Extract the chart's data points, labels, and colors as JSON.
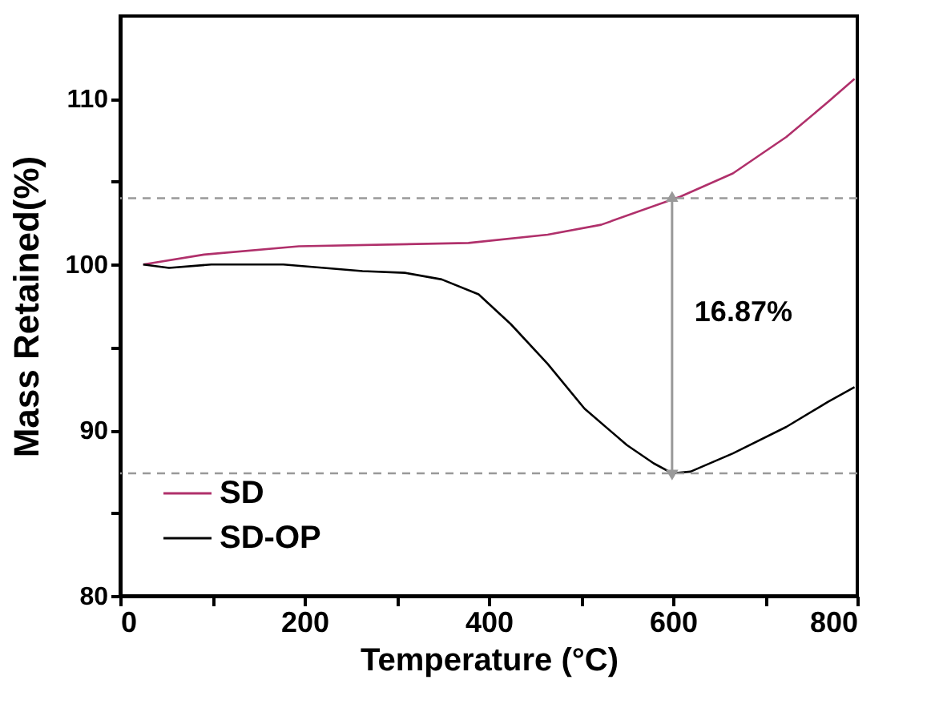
{
  "chart_data": {
    "type": "line",
    "xlabel": "Temperature (°C)",
    "ylabel": "Mass Retained(%)",
    "xlim": [
      0,
      800
    ],
    "ylim": [
      80,
      115
    ],
    "xticks": [
      0,
      {
        "value": 100,
        "label": null
      },
      200,
      {
        "value": 300,
        "label": null
      },
      400,
      {
        "value": 500,
        "label": null
      },
      600,
      {
        "value": 700,
        "label": null
      },
      800
    ],
    "yticks": [
      80,
      {
        "value": 85,
        "label": null
      },
      90,
      {
        "value": 95,
        "label": null
      },
      100,
      {
        "value": 105,
        "label": null
      },
      110
    ],
    "grid": false,
    "legend": "bottom left",
    "marker": "none",
    "line_style": "solid",
    "series": [
      {
        "name": "SD",
        "color": "#b0306b",
        "x": [
          25,
          91,
          194,
          378,
          464,
          522,
          608,
          665,
          723,
          768,
          797
        ],
        "values": [
          100,
          100.6,
          101.1,
          101.3,
          101.8,
          102.4,
          104.1,
          105.5,
          107.7,
          109.8,
          111.2
        ]
      },
      {
        "name": "SD-OP",
        "color": "#000000",
        "x": [
          25,
          53,
          99,
          177,
          263,
          309,
          349,
          389,
          424,
          464,
          504,
          550,
          579,
          599,
          619,
          665,
          723,
          768,
          797
        ],
        "values": [
          100,
          99.8,
          100,
          100,
          99.6,
          99.5,
          99.1,
          98.2,
          96.4,
          94.0,
          91.3,
          89.1,
          88.0,
          87.4,
          87.5,
          88.6,
          90.2,
          91.7,
          92.6
        ]
      }
    ],
    "ref_lines": [
      {
        "axis": "y",
        "value": 104,
        "color": "#999999",
        "line_style": "dashed"
      },
      {
        "axis": "y",
        "value": 87.4,
        "color": "#999999",
        "line_style": "dashed"
      }
    ],
    "annotations": [
      "16.87%"
    ]
  }
}
